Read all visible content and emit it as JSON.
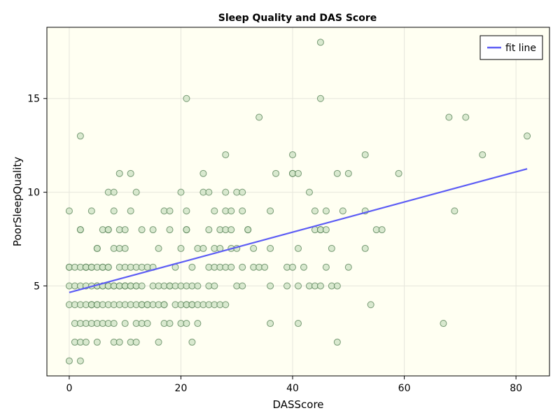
{
  "chart_data": {
    "type": "scatter",
    "title": "Sleep Quality and DAS Score",
    "xlabel": "DASScore",
    "ylabel": "PoorSleepQuality",
    "xlim": [
      -4,
      86
    ],
    "ylim": [
      0.2,
      18.8
    ],
    "xticks": [
      0,
      20,
      40,
      60,
      80
    ],
    "yticks": [
      5,
      10,
      15
    ],
    "grid": true,
    "legend": {
      "position": "top-right",
      "entries": [
        {
          "label": "fit line",
          "color": "#5c5cf5"
        }
      ]
    },
    "colors": {
      "background": "#fffff2",
      "point_fill": "#cfe4c6",
      "point_stroke": "#4f7b4f",
      "fit_line": "#5c5cf5",
      "grid": "#e6e6dc"
    },
    "fit_line": {
      "x": [
        0,
        82
      ],
      "y": [
        4.65,
        11.25
      ]
    },
    "series": [
      {
        "x": [
          0,
          0,
          0,
          0,
          0,
          0,
          1,
          1,
          1,
          1,
          1,
          2,
          2,
          2,
          2,
          2,
          2,
          2,
          2,
          2,
          3,
          3,
          3,
          3,
          3,
          3,
          3,
          4,
          4,
          4,
          4,
          4,
          4,
          4,
          4,
          5,
          5,
          5,
          5,
          5,
          5,
          5,
          5,
          5,
          6,
          6,
          6,
          6,
          6,
          6,
          6,
          7,
          7,
          7,
          7,
          7,
          7,
          7,
          7,
          7,
          8,
          8,
          8,
          8,
          8,
          8,
          8,
          8,
          9,
          9,
          9,
          9,
          9,
          9,
          9,
          9,
          10,
          10,
          10,
          10,
          10,
          10,
          10,
          10,
          11,
          11,
          11,
          11,
          11,
          11,
          11,
          12,
          12,
          12,
          12,
          12,
          12,
          12,
          13,
          13,
          13,
          13,
          13,
          13,
          14,
          14,
          14,
          14,
          15,
          15,
          15,
          15,
          16,
          16,
          16,
          16,
          17,
          17,
          17,
          17,
          17,
          18,
          18,
          18,
          18,
          18,
          19,
          19,
          19,
          20,
          20,
          20,
          20,
          20,
          21,
          21,
          21,
          21,
          21,
          21,
          21,
          21,
          22,
          22,
          22,
          22,
          22,
          23,
          23,
          23,
          23,
          24,
          24,
          24,
          24,
          25,
          25,
          25,
          25,
          25,
          26,
          26,
          26,
          26,
          26,
          27,
          27,
          27,
          27,
          28,
          28,
          28,
          28,
          28,
          28,
          29,
          29,
          29,
          29,
          30,
          30,
          30,
          31,
          31,
          31,
          31,
          32,
          32,
          33,
          33,
          34,
          34,
          35,
          36,
          36,
          36,
          36,
          37,
          39,
          39,
          40,
          40,
          40,
          40,
          41,
          41,
          41,
          41,
          42,
          43,
          43,
          44,
          44,
          44,
          45,
          45,
          45,
          45,
          45,
          46,
          46,
          46,
          47,
          47,
          48,
          48,
          48,
          49,
          50,
          50,
          53,
          53,
          53,
          54,
          55,
          56,
          59,
          67,
          68,
          69,
          71,
          74,
          82
        ],
        "y": [
          1,
          4,
          5,
          6,
          6,
          9,
          2,
          3,
          5,
          6,
          4,
          1,
          2,
          5,
          6,
          8,
          8,
          13,
          3,
          4,
          2,
          3,
          5,
          6,
          6,
          4,
          6,
          3,
          4,
          4,
          5,
          6,
          9,
          4,
          6,
          2,
          3,
          4,
          5,
          5,
          6,
          7,
          7,
          4,
          3,
          4,
          5,
          5,
          6,
          6,
          8,
          3,
          4,
          5,
          5,
          6,
          8,
          8,
          10,
          6,
          2,
          3,
          4,
          5,
          5,
          7,
          10,
          9,
          2,
          4,
          5,
          5,
          6,
          7,
          8,
          11,
          3,
          4,
          5,
          5,
          5,
          6,
          7,
          8,
          2,
          4,
          5,
          5,
          6,
          9,
          11,
          2,
          3,
          4,
          5,
          6,
          10,
          5,
          3,
          4,
          4,
          5,
          6,
          8,
          3,
          4,
          4,
          6,
          4,
          5,
          6,
          8,
          2,
          4,
          5,
          7,
          3,
          4,
          4,
          5,
          9,
          3,
          5,
          5,
          8,
          9,
          4,
          5,
          6,
          3,
          4,
          5,
          7,
          10,
          3,
          4,
          4,
          5,
          8,
          8,
          9,
          15,
          2,
          4,
          4,
          5,
          6,
          3,
          4,
          5,
          7,
          4,
          7,
          10,
          11,
          4,
          5,
          6,
          8,
          10,
          4,
          5,
          6,
          7,
          9,
          4,
          6,
          7,
          8,
          4,
          6,
          8,
          9,
          10,
          12,
          6,
          7,
          8,
          9,
          5,
          7,
          10,
          5,
          6,
          9,
          10,
          8,
          8,
          6,
          7,
          6,
          14,
          6,
          3,
          5,
          7,
          9,
          11,
          5,
          6,
          6,
          11,
          11,
          12,
          3,
          5,
          7,
          11,
          6,
          5,
          10,
          5,
          8,
          9,
          5,
          8,
          8,
          15,
          18,
          6,
          8,
          9,
          5,
          7,
          2,
          5,
          11,
          9,
          6,
          11,
          7,
          9,
          12,
          4,
          8,
          8,
          11,
          3,
          14,
          9,
          14,
          12,
          13
        ]
      }
    ]
  }
}
